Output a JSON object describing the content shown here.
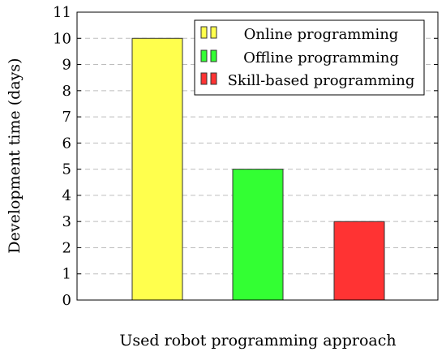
{
  "chart_data": {
    "type": "bar",
    "title": "",
    "xlabel": "Used robot programming approach",
    "ylabel": "Development time (days)",
    "ylim": [
      0,
      11
    ],
    "yticks": [
      0,
      1,
      2,
      3,
      4,
      5,
      6,
      7,
      8,
      9,
      10,
      11
    ],
    "grid": "horizontal dashed",
    "legend_position": "top-right",
    "categories": [
      "Online programming",
      "Offline programming",
      "Skill-based programming"
    ],
    "values": [
      10,
      5,
      3
    ],
    "colors": [
      "#ffff4d",
      "#33ff33",
      "#ff3333"
    ],
    "legend": [
      {
        "label": "Online programming",
        "color": "#ffff4d"
      },
      {
        "label": "Offline programming",
        "color": "#33ff33"
      },
      {
        "label": "Skill-based programming",
        "color": "#ff3333"
      }
    ]
  }
}
